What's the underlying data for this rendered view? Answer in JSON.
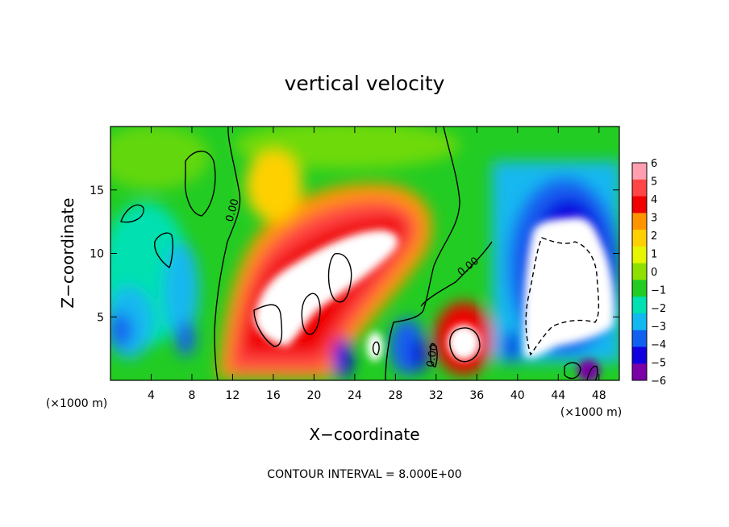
{
  "chart_data": {
    "type": "heatmap",
    "title": "vertical velocity",
    "xlabel": "X−coordinate",
    "ylabel": "Z−coordinate",
    "x_unit": "(×1000 m)",
    "z_unit": "(×1000 m)",
    "xlim": [
      0,
      50
    ],
    "ylim": [
      0,
      20
    ],
    "x_ticks": [
      "4",
      "8",
      "12",
      "16",
      "20",
      "24",
      "28",
      "32",
      "36",
      "40",
      "44",
      "48"
    ],
    "x_tick_values": [
      4,
      8,
      12,
      16,
      20,
      24,
      28,
      32,
      36,
      40,
      44,
      48
    ],
    "y_ticks": [
      "5",
      "10",
      "15"
    ],
    "y_tick_values": [
      5,
      10,
      15
    ],
    "colorbar": {
      "labels": [
        "6",
        "5",
        "4",
        "3",
        "2",
        "1",
        "0",
        "−1",
        "−2",
        "−3",
        "−4",
        "−5",
        "−6"
      ],
      "values": [
        6,
        5,
        4,
        3,
        2,
        1,
        0,
        -1,
        -2,
        -3,
        -4,
        -5,
        -6
      ],
      "colors": [
        "#ff9fb0",
        "#ff4545",
        "#f00000",
        "#ff9400",
        "#ffd000",
        "#e6f500",
        "#8ee000",
        "#22cc22",
        "#00e0b0",
        "#12b8f0",
        "#1260f0",
        "#1000e0",
        "#7a00a8"
      ]
    },
    "contour_labels": [
      "0.00",
      "0.00",
      "0.00"
    ],
    "contour_interval_text": "CONTOUR INTERVAL = 8.000E+00",
    "features": [
      {
        "kind": "updraft",
        "x": 22,
        "z": 8,
        "w": 8
      },
      {
        "kind": "updraft",
        "x": 35,
        "z": 3,
        "w": 7
      },
      {
        "kind": "downdraft",
        "x": 45,
        "z": 8,
        "w": -8
      },
      {
        "kind": "downdraft",
        "x": 30,
        "z": 3,
        "w": -6
      },
      {
        "kind": "downdraft",
        "x": 2,
        "z": 6,
        "w": -4
      }
    ]
  }
}
